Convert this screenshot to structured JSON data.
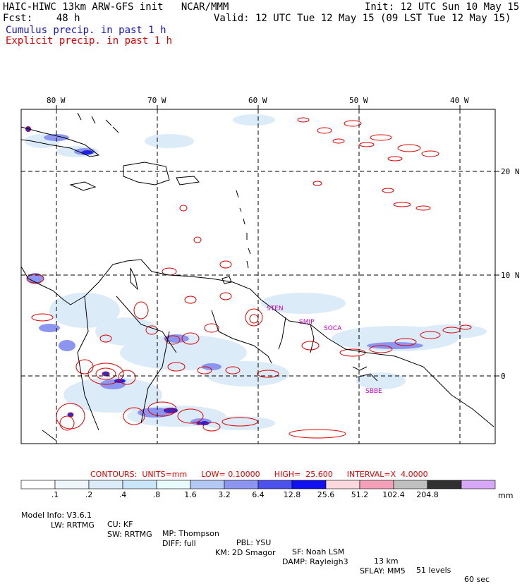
{
  "header": {
    "title": "HAIC-HIWC 13km ARW-GFS init",
    "org": "NCAR/MMM",
    "init": "Init: 12 UTC Sun 10 May 15",
    "fcst_label": "Fcst:",
    "fcst_value": "48 h",
    "valid": "Valid: 12 UTC Tue 12 May 15 (09 LST Tue 12 May 15)",
    "legend_cumulus": "Cumulus precip. in past 1 h",
    "legend_explicit": "Explicit precip. in past 1 h"
  },
  "map": {
    "lon_labels": [
      "80 W",
      "70 W",
      "60 W",
      "50 W",
      "40 W"
    ],
    "lat_labels": [
      "20 N",
      "10 N",
      "0"
    ],
    "stations": [
      "STEN",
      "SMJP",
      "SOCA",
      "SBBE"
    ],
    "colors": {
      "cumulus": "#3040e0",
      "explicit": "#e00000",
      "coast": "#000000",
      "grid": "#000000"
    }
  },
  "contours": {
    "units": "CONTOURS:  UNITS=mm",
    "low": "LOW= 0.10000",
    "high": "HIGH=  25.600",
    "interval": "INTERVAL=X  4.0000"
  },
  "scale": {
    "labels": [
      ".1",
      ".2",
      ".4",
      ".8",
      "1.6",
      "3.2",
      "6.4",
      "12.8",
      "25.6",
      "51.2",
      "102.4",
      "204.8"
    ],
    "unit": "mm",
    "colors": [
      "#ffffff",
      "#eef6fc",
      "#dcebf8",
      "#c8e6f8",
      "#e8fafc",
      "#b4c8f4",
      "#8c96f0",
      "#4c50ec",
      "#1010f0",
      "#fcd8dc",
      "#f4a0b8",
      "#c0c0c0",
      "#303030",
      "#d8a8f8"
    ]
  },
  "model_info": {
    "line1": [
      "Model Info: V3.6.1",
      "CU: KF",
      "MP: Thompson",
      "PBL: YSU",
      "SF: Noah LSM",
      "13 km",
      "51 levels",
      "60 sec"
    ],
    "line2": [
      "LW: RRTMG",
      "SW: RRTMG",
      "DIFF: full",
      "KM: 2D Smagor",
      "DAMP: Rayleigh3",
      "SFLAY: MM5"
    ]
  }
}
